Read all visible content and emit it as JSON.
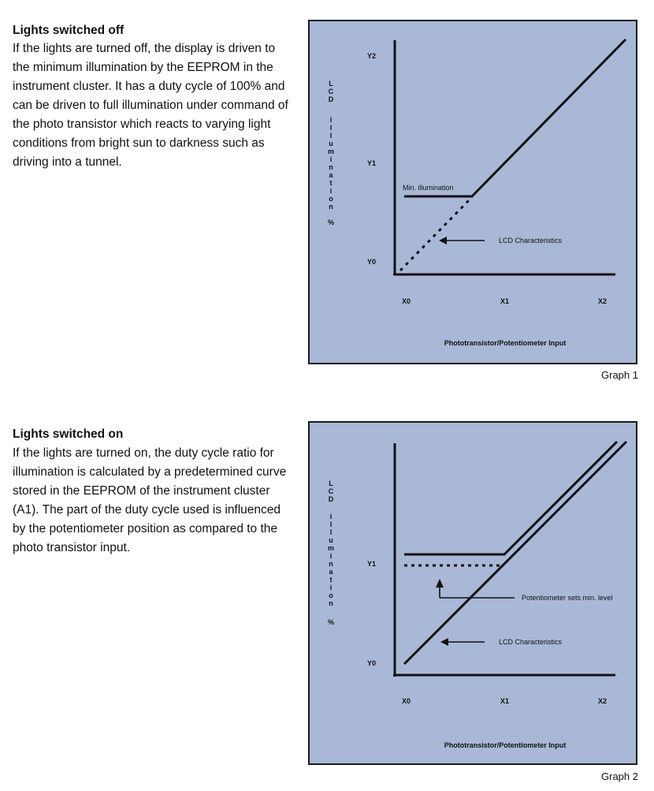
{
  "section1": {
    "title": "Lights switched off",
    "body": "If the lights are turned off, the display is driven to the minimum illumination by the EEPROM in the instrument cluster.  It has a duty cycle of 100% and can be driven to full illumination under command of the photo transistor which reacts to varying light conditions from bright sun to darkness such as driving into a tunnel."
  },
  "section2": {
    "title": "Lights switched on",
    "body": "If the lights are turned on, the duty cycle ratio for illumination is calculated by a predetermined curve stored in the EEPROM of the instrument cluster (A1).  The part of the duty cycle used is influenced by the potentiometer position as compared to the photo transistor input."
  },
  "graph1": {
    "caption": "Graph 1",
    "ylabel_letters": [
      "L",
      "C",
      "D",
      "",
      "i",
      "l",
      "l",
      "u",
      "m",
      "i",
      "n",
      "a",
      "t",
      "i",
      "o",
      "n",
      "",
      "%"
    ],
    "y_ticks": [
      "Y2",
      "Y1",
      "Y0"
    ],
    "x_ticks": [
      "X0",
      "X1",
      "X2"
    ],
    "xlabel": "Phototransistor/Potentiometer Input",
    "annotation_min": "Min. illumination",
    "annotation_lcd": "LCD Characteristics"
  },
  "graph2": {
    "caption": "Graph 2",
    "ylabel_letters": [
      "L",
      "C",
      "D",
      "",
      "i",
      "l",
      "l",
      "u",
      "m",
      "i",
      "n",
      "a",
      "t",
      "i",
      "o",
      "n",
      "",
      "%"
    ],
    "y_ticks": [
      "Y1",
      "Y0"
    ],
    "x_ticks": [
      "X0",
      "X1",
      "X2"
    ],
    "xlabel": "Phototransistor/Potentiometer Input",
    "annotation_pot": "Potentiometer sets min. level",
    "annotation_lcd": "LCD Characteristics"
  }
}
